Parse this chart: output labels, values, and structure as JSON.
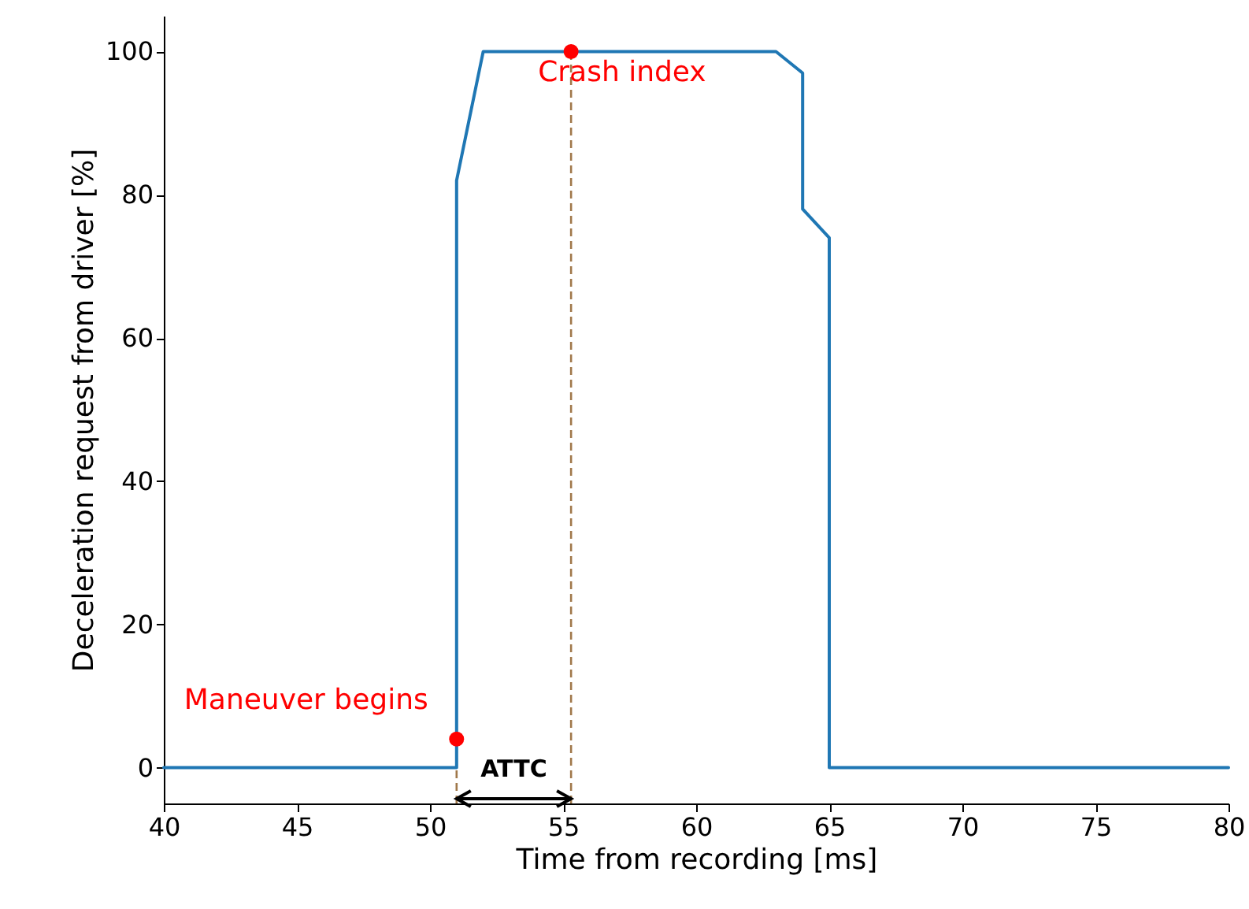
{
  "chart_data": {
    "type": "line",
    "xlabel": "Time from recording [ms]",
    "ylabel": "Deceleration request from driver [%]",
    "xlim": [
      40,
      80
    ],
    "xticks": [
      40,
      45,
      50,
      55,
      60,
      65,
      70,
      75,
      80
    ],
    "ylim": [
      -5,
      105
    ],
    "yticks": [
      0,
      20,
      40,
      60,
      80,
      100
    ],
    "grid": false,
    "marker": "none",
    "line_style": "solid",
    "series": [
      {
        "color": "#1f77b4",
        "x": [
          40,
          51,
          51,
          52,
          63,
          64,
          64,
          65,
          65,
          80
        ],
        "values": [
          0,
          0,
          82,
          100,
          100,
          97,
          78,
          74,
          0,
          0
        ]
      },
      {
        "type": "scatter",
        "color": "#ff0000",
        "marker": "circle",
        "x": [
          51,
          55.3
        ],
        "values": [
          4,
          100
        ]
      }
    ],
    "ref_lines": [
      {
        "axis": "x",
        "value": 51,
        "color": "#a0784a",
        "line_style": "dashed"
      },
      {
        "axis": "x",
        "value": 55.3,
        "color": "#a0784a",
        "line_style": "dashed"
      }
    ],
    "annotations": [
      "Maneuver begins",
      "Crash index",
      "ATTC"
    ]
  }
}
